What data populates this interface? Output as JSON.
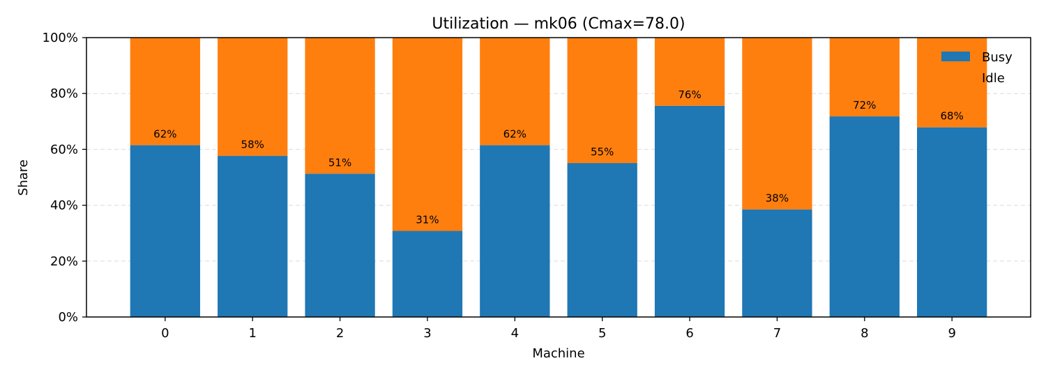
{
  "chart_data": {
    "type": "bar",
    "stacked": true,
    "title": "Utilization — mk06 (Cmax=78.0)",
    "xlabel": "Machine",
    "ylabel": "Share",
    "categories": [
      "0",
      "1",
      "2",
      "3",
      "4",
      "5",
      "6",
      "7",
      "8",
      "9"
    ],
    "series": [
      {
        "name": "Busy",
        "color": "#1f77b4",
        "values": [
          61.5,
          57.7,
          51.3,
          30.8,
          61.5,
          55.1,
          75.6,
          38.5,
          71.8,
          67.9
        ]
      },
      {
        "name": "Idle",
        "color": "#ff7f0e",
        "values": [
          38.5,
          42.3,
          48.7,
          69.2,
          38.5,
          44.9,
          24.4,
          61.5,
          28.2,
          32.1
        ]
      }
    ],
    "data_labels": [
      "62%",
      "58%",
      "51%",
      "31%",
      "62%",
      "55%",
      "76%",
      "38%",
      "72%",
      "68%"
    ],
    "ylim": [
      0,
      100
    ],
    "yticks": [
      0,
      20,
      40,
      60,
      80,
      100
    ],
    "ytick_labels": [
      "0%",
      "20%",
      "40%",
      "60%",
      "80%",
      "100%"
    ],
    "grid": "y-dashed",
    "legend_position": "top-right"
  }
}
